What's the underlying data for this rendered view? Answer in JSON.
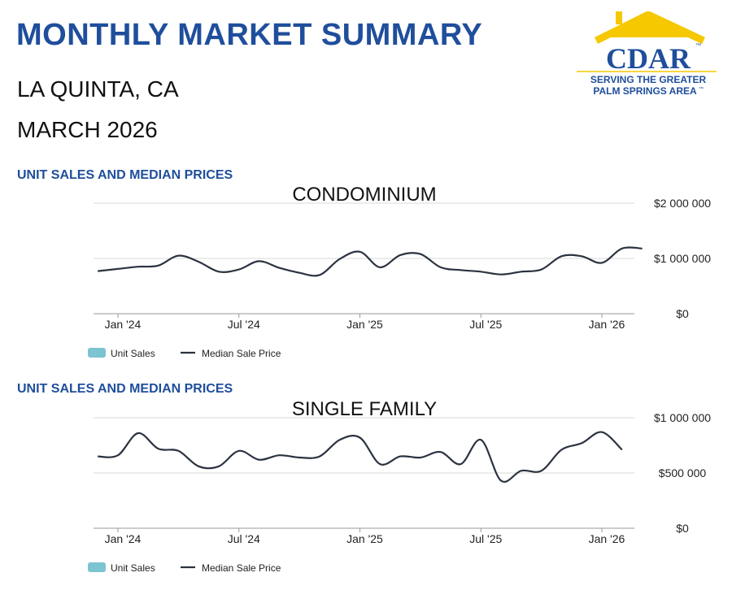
{
  "header": {
    "title": "MONTHLY MARKET SUMMARY",
    "city": "LA QUINTA, CA",
    "period": "MARCH  2026"
  },
  "logo": {
    "name": "CDAR",
    "tagline_1": "SERVING THE GREATER",
    "tagline_2": "PALM SPRINGS AREA",
    "tm": "™",
    "colors": {
      "roof": "#f5c800",
      "text": "#1f4e9c",
      "tagline": "#1f4e9c"
    }
  },
  "colors": {
    "line": "#2b3340",
    "grid": "#d9d9d9",
    "axis": "#9a9a9a",
    "unit_sales": "#7cc4d2"
  },
  "chart_data": [
    {
      "type": "line",
      "section_label": "UNIT SALES AND MEDIAN PRICES",
      "title": "CONDOMINIUM",
      "x_tick_labels": [
        "Jan '24",
        "Jul '24",
        "Jan '25",
        "Jul '25",
        "Jan '26"
      ],
      "y_tick_labels": [
        "$2 000 000",
        "$1 000 000",
        "$0"
      ],
      "ylim": [
        0,
        2000000
      ],
      "legend": {
        "position": "bottom-left",
        "items": [
          "Unit Sales",
          "Median Sale Price"
        ]
      },
      "grid": true,
      "series": [
        {
          "name": "Median Sale Price",
          "x": [
            "2023-12",
            "2024-01",
            "2024-02",
            "2024-03",
            "2024-04",
            "2024-05",
            "2024-06",
            "2024-07",
            "2024-08",
            "2024-09",
            "2024-10",
            "2024-11",
            "2024-12",
            "2025-01",
            "2025-02",
            "2025-03",
            "2025-04",
            "2025-05",
            "2025-06",
            "2025-07",
            "2025-08",
            "2025-09",
            "2025-10",
            "2025-11",
            "2025-12",
            "2026-01",
            "2026-02",
            "2026-03"
          ],
          "values": [
            770000,
            810000,
            850000,
            870000,
            1050000,
            940000,
            760000,
            800000,
            950000,
            830000,
            740000,
            700000,
            990000,
            1120000,
            840000,
            1060000,
            1080000,
            840000,
            790000,
            760000,
            710000,
            760000,
            800000,
            1040000,
            1040000,
            920000,
            1180000,
            1180000
          ]
        }
      ]
    },
    {
      "type": "line",
      "section_label": "UNIT SALES AND MEDIAN PRICES",
      "title": "SINGLE FAMILY",
      "x_tick_labels": [
        "Jan '24",
        "Jul '24",
        "Jan '25",
        "Jul '25",
        "Jan '26"
      ],
      "y_tick_labels": [
        "$1 000 000",
        "$500 000",
        "$0"
      ],
      "ylim": [
        0,
        1000000
      ],
      "legend": {
        "position": "bottom-left",
        "items": [
          "Unit Sales",
          "Median Sale Price"
        ]
      },
      "grid": true,
      "series": [
        {
          "name": "Median Sale Price",
          "x": [
            "2023-12",
            "2024-01",
            "2024-02",
            "2024-03",
            "2024-04",
            "2024-05",
            "2024-06",
            "2024-07",
            "2024-08",
            "2024-09",
            "2024-10",
            "2024-11",
            "2024-12",
            "2025-01",
            "2025-02",
            "2025-03",
            "2025-04",
            "2025-05",
            "2025-06",
            "2025-07",
            "2025-08",
            "2025-09",
            "2025-10",
            "2025-11",
            "2025-12",
            "2026-01",
            "2026-02"
          ],
          "values": [
            650000,
            660000,
            860000,
            720000,
            700000,
            560000,
            560000,
            700000,
            620000,
            660000,
            640000,
            650000,
            800000,
            820000,
            580000,
            650000,
            640000,
            690000,
            580000,
            800000,
            430000,
            520000,
            520000,
            710000,
            770000,
            870000,
            710000
          ]
        }
      ]
    }
  ]
}
